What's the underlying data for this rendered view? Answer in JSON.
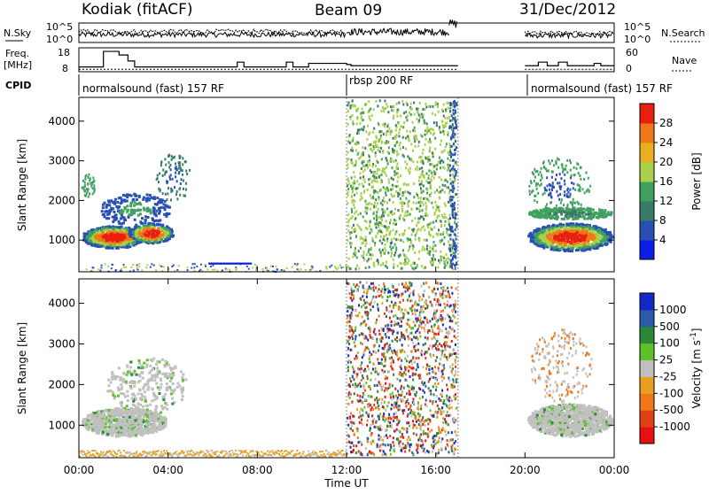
{
  "header": {
    "station": "Kodiak (fitACF)",
    "beam": "Beam 09",
    "date": "31/Dec/2012"
  },
  "panels": {
    "nsky_label": "N.Sky",
    "nsky_ticks": [
      "10^5",
      "10^0"
    ],
    "nsearch_label": "N.Search",
    "nsearch_ticks": [
      "10^5",
      "10^0"
    ],
    "freq_label_1": "Freq.",
    "freq_label_2": "[MHz]",
    "freq_ticks": [
      "18",
      "8"
    ],
    "nave_label": "Nave",
    "nave_ticks": [
      "60",
      "0"
    ],
    "cpid_label": "CPID",
    "cpid_segments": [
      {
        "label": "normalsound (fast) 157 RF",
        "start_h": 0
      },
      {
        "label": "rbsp 200 RF",
        "start_h": 12
      },
      {
        "label": "normalsound (fast) 157 RF",
        "start_h": 20
      }
    ]
  },
  "colors": {
    "power": [
      "#0a1ee6",
      "#2850b4",
      "#3a7a68",
      "#40a060",
      "#a8d048",
      "#e8b020",
      "#f07818",
      "#e82010"
    ],
    "velocity": [
      "#1428c8",
      "#2a5aa8",
      "#2a8838",
      "#60c028",
      "#c0c0c0",
      "#e8a020",
      "#f07818",
      "#e04018",
      "#e81010"
    ]
  },
  "chart_data": [
    {
      "type": "line",
      "title": "N.Sky / N.Search",
      "x_unit": "hours UT",
      "xlim": [
        0,
        24
      ],
      "ylabel_left": "N.Sky",
      "ylabel_right": "N.Search",
      "y_ticks": [
        "10^0",
        "10^5"
      ],
      "gaps": [
        [
          17,
          20
        ]
      ]
    },
    {
      "type": "line",
      "title": "Freq. / Nave",
      "xlim": [
        0,
        24
      ],
      "ylabel_left": "Freq. [MHz]",
      "ylim_left": [
        8,
        18
      ],
      "ylabel_right": "Nave",
      "ylim_right": [
        0,
        60
      ],
      "freq_steps": [
        [
          0,
          10
        ],
        [
          0.8,
          10
        ],
        [
          1.1,
          16.5
        ],
        [
          1.6,
          16.5
        ],
        [
          1.8,
          15
        ],
        [
          2.2,
          12.5
        ],
        [
          2.5,
          10
        ],
        [
          6.9,
          10
        ],
        [
          7.1,
          12
        ],
        [
          7.4,
          10
        ],
        [
          9.1,
          10
        ],
        [
          9.3,
          12
        ],
        [
          9.6,
          10
        ],
        [
          10.1,
          10
        ],
        [
          10.3,
          11.5
        ],
        [
          12,
          11
        ],
        [
          12.2,
          10.5
        ],
        [
          17,
          10.5
        ],
        [
          20,
          10.5
        ],
        [
          20.6,
          12
        ],
        [
          21,
          10.5
        ],
        [
          21.5,
          12
        ],
        [
          21.9,
          10.5
        ],
        [
          22.9,
          10.5
        ],
        [
          23.1,
          11.5
        ],
        [
          23.4,
          10.5
        ],
        [
          24,
          10.5
        ]
      ]
    },
    {
      "type": "heatmap",
      "title": "Power",
      "xlabel": "",
      "ylabel": "Slant Range [km]",
      "xlim": [
        0,
        24
      ],
      "ylim": [
        200,
        4600
      ],
      "y_ticks": [
        1000,
        2000,
        3000,
        4000
      ],
      "colorbar_label": "Power [dB]",
      "colorbar_ticks": [
        4,
        8,
        12,
        16,
        20,
        24,
        28
      ]
    },
    {
      "type": "heatmap",
      "title": "Velocity",
      "xlabel": "Time UT",
      "ylabel": "Slant Range [km]",
      "xlim": [
        0,
        24
      ],
      "ylim": [
        200,
        4600
      ],
      "x_ticks": [
        "00:00",
        "04:00",
        "08:00",
        "12:00",
        "16:00",
        "20:00",
        "00:00"
      ],
      "y_ticks": [
        1000,
        2000,
        3000,
        4000
      ],
      "colorbar_label": "Velocity [m s^-1]",
      "colorbar_ticks": [
        "1000",
        "500",
        "100",
        "25",
        "-25",
        "-100",
        "-500",
        "-1000"
      ]
    }
  ]
}
